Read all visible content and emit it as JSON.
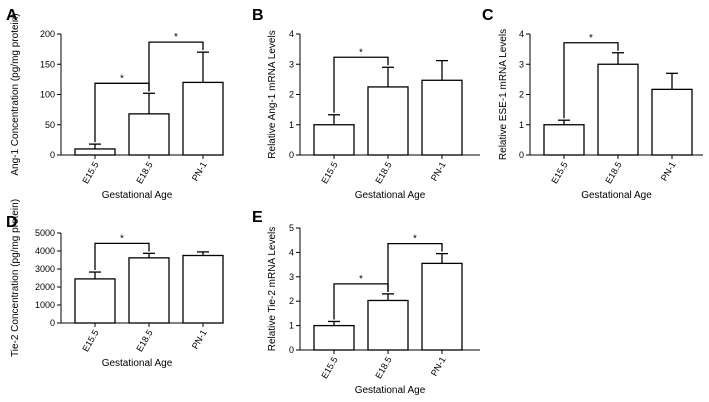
{
  "chart_data": [
    {
      "panel": "A",
      "type": "bar",
      "categories": [
        "E15.5",
        "E18.5",
        "PN-1"
      ],
      "values": [
        10,
        68,
        120
      ],
      "errors": [
        8,
        34,
        50
      ],
      "ylabel": "Ang-1 Concentration (pg/mg protein)",
      "xlabel": "Gestational Age",
      "ylim": [
        0,
        200
      ],
      "yticks": [
        "0",
        "50",
        "100",
        "150",
        "200"
      ],
      "significance": [
        {
          "from": 0,
          "to": 1,
          "label": "*"
        },
        {
          "from": 1,
          "to": 2,
          "label": "*"
        }
      ]
    },
    {
      "panel": "B",
      "type": "bar",
      "categories": [
        "E15.5",
        "E18.5",
        "PN-1"
      ],
      "values": [
        1.0,
        2.25,
        2.47
      ],
      "errors": [
        0.33,
        0.65,
        0.65
      ],
      "ylabel": "Relative Ang-1 mRNA Levels",
      "xlabel": "Gestational Age",
      "ylim": [
        0,
        4
      ],
      "yticks": [
        "0",
        "1",
        "2",
        "3",
        "4"
      ],
      "significance": [
        {
          "from": 0,
          "to": 1,
          "label": "*"
        }
      ]
    },
    {
      "panel": "C",
      "type": "bar",
      "categories": [
        "E15.5",
        "E18.5",
        "PN-1"
      ],
      "values": [
        1.0,
        3.0,
        2.17
      ],
      "errors": [
        0.15,
        0.38,
        0.53
      ],
      "ylabel": "Relative ESE-1 mRNA Levels",
      "xlabel": "Gestational Age",
      "ylim": [
        0,
        4
      ],
      "yticks": [
        "0",
        "1",
        "2",
        "3",
        "4"
      ],
      "significance": [
        {
          "from": 0,
          "to": 1,
          "label": "*"
        }
      ]
    },
    {
      "panel": "D",
      "type": "bar",
      "categories": [
        "E15.5",
        "E18.5",
        "PN-1"
      ],
      "values": [
        2450,
        3620,
        3750
      ],
      "errors": [
        380,
        250,
        200
      ],
      "ylabel": "Tie-2 Concentration (pg/mg protein)",
      "xlabel": "Gestational Age",
      "ylim": [
        0,
        5000
      ],
      "yticks": [
        "0",
        "1000",
        "2000",
        "3000",
        "4000",
        "5000"
      ],
      "significance": [
        {
          "from": 0,
          "to": 1,
          "label": "*"
        }
      ]
    },
    {
      "panel": "E",
      "type": "bar",
      "categories": [
        "E15.5",
        "E18.5",
        "PN-1"
      ],
      "values": [
        1.0,
        2.03,
        3.55
      ],
      "errors": [
        0.17,
        0.27,
        0.4
      ],
      "ylabel": "Relative Tie-2 mRNA Levels",
      "xlabel": "Gestational Age",
      "ylim": [
        0,
        5
      ],
      "yticks": [
        "0",
        "1",
        "2",
        "3",
        "4",
        "5"
      ],
      "significance": [
        {
          "from": 0,
          "to": 1,
          "label": "*"
        },
        {
          "from": 1,
          "to": 2,
          "label": "*"
        }
      ]
    }
  ]
}
